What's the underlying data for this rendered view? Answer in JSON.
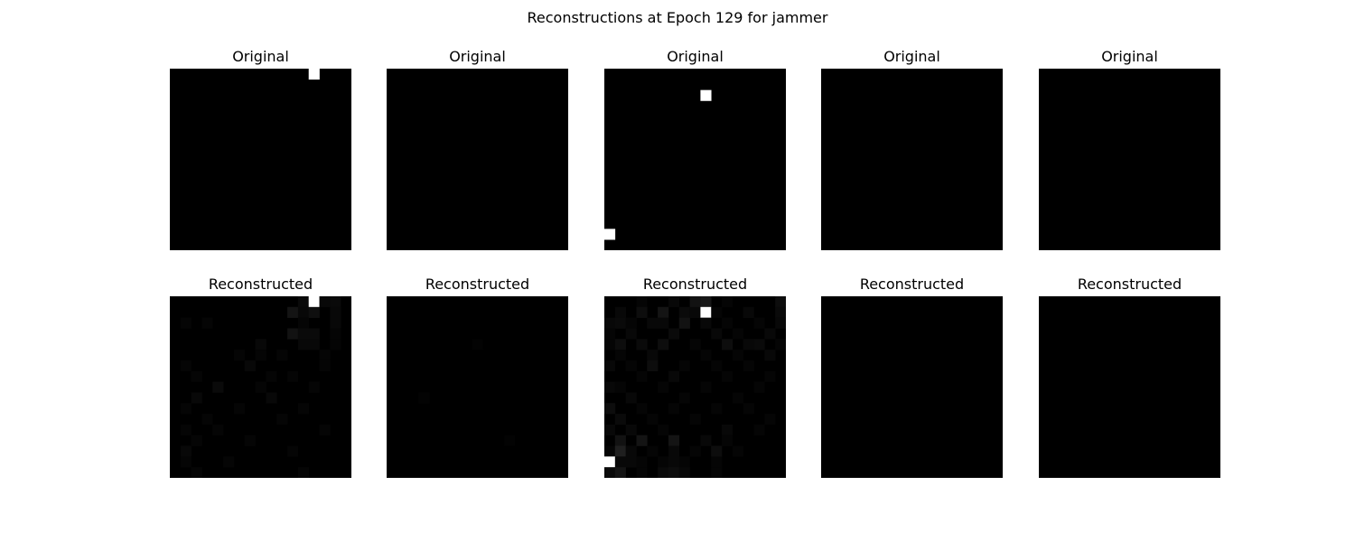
{
  "figure": {
    "title": "Reconstructions at Epoch 129 for jammer"
  },
  "grid_size": 17,
  "rows": [
    {
      "label": "Original",
      "panels": [
        {
          "label": "Original",
          "cells": [
            [
              0,
              13,
              1.0
            ]
          ]
        },
        {
          "label": "Original",
          "cells": []
        },
        {
          "label": "Original",
          "cells": [
            [
              2,
              9,
              1.0
            ],
            [
              15,
              0,
              1.0
            ]
          ]
        },
        {
          "label": "Original",
          "cells": []
        },
        {
          "label": "Original",
          "cells": []
        }
      ]
    },
    {
      "label": "Reconstructed",
      "panels": [
        {
          "label": "Reconstructed",
          "cells": [
            [
              0,
              12,
              0.04
            ],
            [
              0,
              13,
              1.0
            ],
            [
              0,
              14,
              0.03
            ],
            [
              0,
              15,
              0.04
            ],
            [
              1,
              11,
              0.08
            ],
            [
              1,
              12,
              0.03
            ],
            [
              1,
              13,
              0.06
            ],
            [
              1,
              15,
              0.03
            ],
            [
              2,
              1,
              0.02
            ],
            [
              2,
              3,
              0.02
            ],
            [
              2,
              12,
              0.02
            ],
            [
              2,
              15,
              0.03
            ],
            [
              3,
              11,
              0.07
            ],
            [
              3,
              12,
              0.04
            ],
            [
              3,
              13,
              0.04
            ],
            [
              3,
              15,
              0.02
            ],
            [
              4,
              8,
              0.03
            ],
            [
              4,
              12,
              0.03
            ],
            [
              4,
              13,
              0.03
            ],
            [
              4,
              15,
              0.02
            ],
            [
              5,
              6,
              0.02
            ],
            [
              5,
              8,
              0.02
            ],
            [
              5,
              10,
              0.02
            ],
            [
              5,
              14,
              0.02
            ],
            [
              6,
              1,
              0.02
            ],
            [
              6,
              7,
              0.03
            ],
            [
              6,
              14,
              0.02
            ],
            [
              7,
              2,
              0.02
            ],
            [
              7,
              9,
              0.02
            ],
            [
              7,
              11,
              0.02
            ],
            [
              8,
              4,
              0.04
            ],
            [
              8,
              8,
              0.02
            ],
            [
              8,
              13,
              0.02
            ],
            [
              9,
              2,
              0.03
            ],
            [
              9,
              9,
              0.03
            ],
            [
              10,
              1,
              0.02
            ],
            [
              10,
              6,
              0.02
            ],
            [
              10,
              12,
              0.02
            ],
            [
              11,
              3,
              0.02
            ],
            [
              11,
              10,
              0.02
            ],
            [
              12,
              1,
              0.02
            ],
            [
              12,
              4,
              0.02
            ],
            [
              12,
              14,
              0.02
            ],
            [
              13,
              2,
              0.02
            ],
            [
              13,
              7,
              0.02
            ],
            [
              14,
              1,
              0.03
            ],
            [
              14,
              11,
              0.02
            ],
            [
              15,
              1,
              0.02
            ],
            [
              15,
              5,
              0.02
            ],
            [
              16,
              2,
              0.02
            ],
            [
              16,
              12,
              0.02
            ]
          ]
        },
        {
          "label": "Reconstructed",
          "cells": [
            [
              4,
              8,
              0.01
            ],
            [
              9,
              3,
              0.01
            ],
            [
              13,
              11,
              0.01
            ]
          ]
        },
        {
          "label": "Reconstructed",
          "cells": [
            [
              0,
              3,
              0.02
            ],
            [
              0,
              6,
              0.03
            ],
            [
              0,
              8,
              0.07
            ],
            [
              0,
              9,
              0.09
            ],
            [
              0,
              11,
              0.02
            ],
            [
              0,
              16,
              0.05
            ],
            [
              1,
              1,
              0.03
            ],
            [
              1,
              3,
              0.05
            ],
            [
              1,
              5,
              0.08
            ],
            [
              1,
              7,
              0.04
            ],
            [
              1,
              8,
              0.03
            ],
            [
              1,
              9,
              1.0
            ],
            [
              1,
              10,
              0.02
            ],
            [
              1,
              13,
              0.03
            ],
            [
              1,
              16,
              0.04
            ],
            [
              2,
              0,
              0.03
            ],
            [
              2,
              1,
              0.04
            ],
            [
              2,
              2,
              0.02
            ],
            [
              2,
              4,
              0.03
            ],
            [
              2,
              5,
              0.03
            ],
            [
              2,
              7,
              0.07
            ],
            [
              2,
              9,
              0.03
            ],
            [
              2,
              11,
              0.02
            ],
            [
              2,
              14,
              0.02
            ],
            [
              2,
              16,
              0.03
            ],
            [
              3,
              0,
              0.02
            ],
            [
              3,
              2,
              0.03
            ],
            [
              3,
              6,
              0.04
            ],
            [
              3,
              10,
              0.03
            ],
            [
              3,
              12,
              0.02
            ],
            [
              3,
              15,
              0.03
            ],
            [
              4,
              0,
              0.02
            ],
            [
              4,
              1,
              0.05
            ],
            [
              4,
              3,
              0.04
            ],
            [
              4,
              5,
              0.05
            ],
            [
              4,
              8,
              0.02
            ],
            [
              4,
              11,
              0.05
            ],
            [
              4,
              13,
              0.03
            ],
            [
              4,
              14,
              0.04
            ],
            [
              4,
              16,
              0.02
            ],
            [
              5,
              1,
              0.02
            ],
            [
              5,
              4,
              0.03
            ],
            [
              5,
              9,
              0.02
            ],
            [
              5,
              12,
              0.02
            ],
            [
              5,
              15,
              0.03
            ],
            [
              6,
              0,
              0.03
            ],
            [
              6,
              2,
              0.02
            ],
            [
              6,
              4,
              0.05
            ],
            [
              6,
              7,
              0.02
            ],
            [
              6,
              10,
              0.02
            ],
            [
              6,
              13,
              0.02
            ],
            [
              7,
              3,
              0.02
            ],
            [
              7,
              6,
              0.03
            ],
            [
              7,
              11,
              0.02
            ],
            [
              7,
              15,
              0.02
            ],
            [
              8,
              0,
              0.03
            ],
            [
              8,
              1,
              0.02
            ],
            [
              8,
              5,
              0.02
            ],
            [
              8,
              9,
              0.02
            ],
            [
              8,
              14,
              0.02
            ],
            [
              9,
              2,
              0.03
            ],
            [
              9,
              7,
              0.02
            ],
            [
              9,
              12,
              0.02
            ],
            [
              10,
              0,
              0.05
            ],
            [
              10,
              3,
              0.02
            ],
            [
              10,
              6,
              0.02
            ],
            [
              10,
              10,
              0.02
            ],
            [
              10,
              13,
              0.02
            ],
            [
              11,
              1,
              0.04
            ],
            [
              11,
              4,
              0.02
            ],
            [
              11,
              8,
              0.02
            ],
            [
              11,
              15,
              0.02
            ],
            [
              12,
              0,
              0.03
            ],
            [
              12,
              2,
              0.03
            ],
            [
              12,
              5,
              0.02
            ],
            [
              12,
              11,
              0.03
            ],
            [
              12,
              14,
              0.02
            ],
            [
              13,
              1,
              0.07
            ],
            [
              13,
              3,
              0.08
            ],
            [
              13,
              6,
              0.08
            ],
            [
              13,
              9,
              0.03
            ],
            [
              13,
              11,
              0.02
            ],
            [
              14,
              0,
              0.02
            ],
            [
              14,
              1,
              0.12
            ],
            [
              14,
              2,
              0.03
            ],
            [
              14,
              4,
              0.02
            ],
            [
              14,
              6,
              0.03
            ],
            [
              14,
              8,
              0.02
            ],
            [
              14,
              10,
              0.05
            ],
            [
              14,
              12,
              0.02
            ],
            [
              15,
              0,
              1.0
            ],
            [
              15,
              1,
              0.03
            ],
            [
              15,
              2,
              0.03
            ],
            [
              15,
              3,
              0.02
            ],
            [
              15,
              5,
              0.02
            ],
            [
              15,
              6,
              0.03
            ],
            [
              15,
              7,
              0.02
            ],
            [
              15,
              10,
              0.02
            ],
            [
              16,
              0,
              0.04
            ],
            [
              16,
              1,
              0.08
            ],
            [
              16,
              3,
              0.02
            ],
            [
              16,
              5,
              0.04
            ],
            [
              16,
              6,
              0.05
            ],
            [
              16,
              7,
              0.03
            ],
            [
              16,
              10,
              0.02
            ]
          ]
        },
        {
          "label": "Reconstructed",
          "cells": []
        },
        {
          "label": "Reconstructed",
          "cells": []
        }
      ]
    }
  ]
}
